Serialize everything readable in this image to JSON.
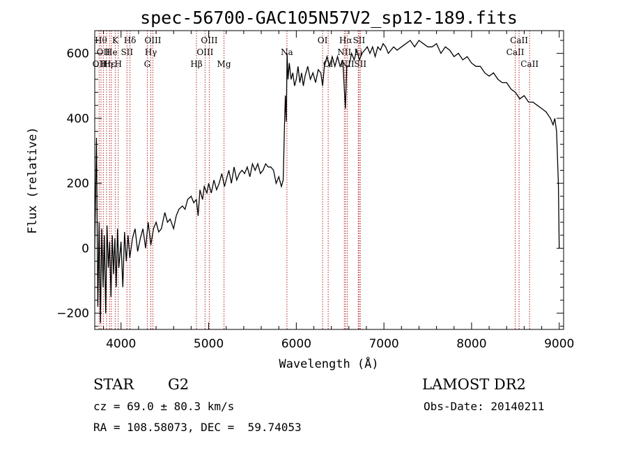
{
  "title": "spec-56700-GAC105N57V2_sp12-189.fits",
  "footer": {
    "class": "STAR",
    "subclass": "G2",
    "survey": "LAMOST DR2",
    "cz": "cz = 69.0 ± 80.3 km/s",
    "obs_date": "Obs-Date: 20140211",
    "coords": "RA = 108.58073, DEC =  59.74053"
  },
  "chart_data": {
    "type": "line",
    "title": "spec-56700-GAC105N57V2_sp12-189.fits",
    "xlabel": "Wavelength (Å)",
    "ylabel": "Flux (relative)",
    "xlim": [
      3700,
      9050
    ],
    "ylim": [
      -250,
      670
    ],
    "x_ticks": [
      4000,
      5000,
      6000,
      7000,
      8000,
      9000
    ],
    "y_ticks": [
      -200,
      0,
      200,
      400,
      600
    ],
    "grid": false,
    "series": [
      {
        "values_xy": [
          [
            3700,
            0
          ],
          [
            3720,
            340
          ],
          [
            3735,
            -180
          ],
          [
            3750,
            80
          ],
          [
            3765,
            -230
          ],
          [
            3780,
            60
          ],
          [
            3795,
            -120
          ],
          [
            3810,
            40
          ],
          [
            3825,
            -200
          ],
          [
            3840,
            70
          ],
          [
            3855,
            -60
          ],
          [
            3870,
            20
          ],
          [
            3885,
            -150
          ],
          [
            3900,
            40
          ],
          [
            3915,
            -80
          ],
          [
            3930,
            30
          ],
          [
            3945,
            -120
          ],
          [
            3960,
            60
          ],
          [
            3975,
            -60
          ],
          [
            4000,
            20
          ],
          [
            4020,
            -120
          ],
          [
            4040,
            50
          ],
          [
            4060,
            -40
          ],
          [
            4080,
            40
          ],
          [
            4100,
            -30
          ],
          [
            4130,
            30
          ],
          [
            4160,
            60
          ],
          [
            4190,
            -10
          ],
          [
            4220,
            30
          ],
          [
            4250,
            60
          ],
          [
            4280,
            0
          ],
          [
            4310,
            80
          ],
          [
            4340,
            10
          ],
          [
            4370,
            60
          ],
          [
            4400,
            80
          ],
          [
            4430,
            50
          ],
          [
            4460,
            60
          ],
          [
            4500,
            110
          ],
          [
            4530,
            80
          ],
          [
            4560,
            90
          ],
          [
            4600,
            60
          ],
          [
            4630,
            100
          ],
          [
            4660,
            120
          ],
          [
            4700,
            130
          ],
          [
            4730,
            120
          ],
          [
            4760,
            150
          ],
          [
            4800,
            160
          ],
          [
            4830,
            140
          ],
          [
            4860,
            150
          ],
          [
            4880,
            100
          ],
          [
            4900,
            180
          ],
          [
            4930,
            150
          ],
          [
            4950,
            190
          ],
          [
            4980,
            170
          ],
          [
            5000,
            200
          ],
          [
            5030,
            170
          ],
          [
            5060,
            210
          ],
          [
            5090,
            180
          ],
          [
            5120,
            200
          ],
          [
            5150,
            230
          ],
          [
            5180,
            190
          ],
          [
            5200,
            210
          ],
          [
            5230,
            240
          ],
          [
            5260,
            200
          ],
          [
            5290,
            250
          ],
          [
            5320,
            210
          ],
          [
            5350,
            230
          ],
          [
            5380,
            240
          ],
          [
            5410,
            230
          ],
          [
            5440,
            250
          ],
          [
            5470,
            220
          ],
          [
            5500,
            260
          ],
          [
            5530,
            240
          ],
          [
            5560,
            260
          ],
          [
            5590,
            230
          ],
          [
            5620,
            240
          ],
          [
            5650,
            260
          ],
          [
            5680,
            250
          ],
          [
            5710,
            250
          ],
          [
            5740,
            240
          ],
          [
            5770,
            200
          ],
          [
            5800,
            220
          ],
          [
            5830,
            190
          ],
          [
            5850,
            210
          ],
          [
            5865,
            370
          ],
          [
            5875,
            470
          ],
          [
            5885,
            390
          ],
          [
            5895,
            600
          ],
          [
            5905,
            520
          ],
          [
            5920,
            570
          ],
          [
            5940,
            520
          ],
          [
            5960,
            540
          ],
          [
            5980,
            500
          ],
          [
            6000,
            520
          ],
          [
            6020,
            560
          ],
          [
            6040,
            510
          ],
          [
            6060,
            540
          ],
          [
            6080,
            500
          ],
          [
            6100,
            530
          ],
          [
            6130,
            560
          ],
          [
            6160,
            520
          ],
          [
            6190,
            540
          ],
          [
            6220,
            510
          ],
          [
            6250,
            550
          ],
          [
            6280,
            540
          ],
          [
            6300,
            500
          ],
          [
            6320,
            560
          ],
          [
            6350,
            590
          ],
          [
            6380,
            560
          ],
          [
            6410,
            590
          ],
          [
            6440,
            560
          ],
          [
            6470,
            590
          ],
          [
            6500,
            560
          ],
          [
            6530,
            580
          ],
          [
            6560,
            430
          ],
          [
            6575,
            560
          ],
          [
            6600,
            560
          ],
          [
            6630,
            600
          ],
          [
            6660,
            580
          ],
          [
            6690,
            610
          ],
          [
            6720,
            580
          ],
          [
            6750,
            600
          ],
          [
            6780,
            610
          ],
          [
            6810,
            620
          ],
          [
            6840,
            600
          ],
          [
            6870,
            620
          ],
          [
            6900,
            590
          ],
          [
            6930,
            620
          ],
          [
            6960,
            610
          ],
          [
            6990,
            630
          ],
          [
            7020,
            620
          ],
          [
            7050,
            600
          ],
          [
            7080,
            610
          ],
          [
            7110,
            620
          ],
          [
            7150,
            610
          ],
          [
            7200,
            620
          ],
          [
            7250,
            630
          ],
          [
            7300,
            640
          ],
          [
            7350,
            620
          ],
          [
            7400,
            640
          ],
          [
            7450,
            630
          ],
          [
            7500,
            620
          ],
          [
            7550,
            620
          ],
          [
            7600,
            630
          ],
          [
            7650,
            600
          ],
          [
            7700,
            620
          ],
          [
            7750,
            610
          ],
          [
            7800,
            590
          ],
          [
            7850,
            600
          ],
          [
            7900,
            580
          ],
          [
            7950,
            590
          ],
          [
            8000,
            570
          ],
          [
            8050,
            560
          ],
          [
            8100,
            560
          ],
          [
            8150,
            540
          ],
          [
            8200,
            530
          ],
          [
            8250,
            540
          ],
          [
            8300,
            520
          ],
          [
            8350,
            510
          ],
          [
            8400,
            510
          ],
          [
            8450,
            490
          ],
          [
            8500,
            480
          ],
          [
            8550,
            460
          ],
          [
            8600,
            470
          ],
          [
            8650,
            450
          ],
          [
            8700,
            450
          ],
          [
            8750,
            440
          ],
          [
            8800,
            430
          ],
          [
            8850,
            420
          ],
          [
            8900,
            400
          ],
          [
            8930,
            380
          ],
          [
            8950,
            400
          ],
          [
            8970,
            360
          ],
          [
            8990,
            200
          ],
          [
            9000,
            0
          ]
        ]
      }
    ],
    "lines": [
      {
        "w": 3750,
        "row": 3,
        "label": "OII"
      },
      {
        "w": 3771,
        "row": 1,
        "label": "Hθ"
      },
      {
        "w": 3798,
        "row": 2,
        "label": "OII"
      },
      {
        "w": 3835,
        "row": 3,
        "label": "Hη"
      },
      {
        "w": 3869,
        "row": 3,
        "label": "Hε"
      },
      {
        "w": 3889,
        "row": 2,
        "label": "He"
      },
      {
        "w": 3934,
        "row": 1,
        "label": "K"
      },
      {
        "w": 3968,
        "row": 3,
        "label": "H"
      },
      {
        "w": 4068,
        "row": 2,
        "label": "SII"
      },
      {
        "w": 4102,
        "row": 1,
        "label": "Hδ"
      },
      {
        "w": 4300,
        "row": 3,
        "label": "G"
      },
      {
        "w": 4340,
        "row": 2,
        "label": "Hγ"
      },
      {
        "w": 4363,
        "row": 1,
        "label": "OIII"
      },
      {
        "w": 4861,
        "row": 3,
        "label": "Hβ"
      },
      {
        "w": 4959,
        "row": 2,
        "label": "OIII"
      },
      {
        "w": 5007,
        "row": 1,
        "label": "OIII"
      },
      {
        "w": 5175,
        "row": 3,
        "label": "Mg"
      },
      {
        "w": 5893,
        "row": 2,
        "label": "Na"
      },
      {
        "w": 6300,
        "row": 1,
        "label": "OI"
      },
      {
        "w": 6364,
        "row": 3,
        "label": "OI"
      },
      {
        "w": 6548,
        "row": 2,
        "label": "NII"
      },
      {
        "w": 6563,
        "row": 1,
        "label": "Hα"
      },
      {
        "w": 6583,
        "row": 3,
        "label": "NII"
      },
      {
        "w": 6707,
        "row": 2,
        "label": "Li"
      },
      {
        "w": 6716,
        "row": 1,
        "label": "SII"
      },
      {
        "w": 6731,
        "row": 3,
        "label": "SII"
      },
      {
        "w": 8498,
        "row": 2,
        "label": "CaII"
      },
      {
        "w": 8542,
        "row": 1,
        "label": "CaII"
      },
      {
        "w": 8662,
        "row": 3,
        "label": "CaII"
      }
    ]
  }
}
